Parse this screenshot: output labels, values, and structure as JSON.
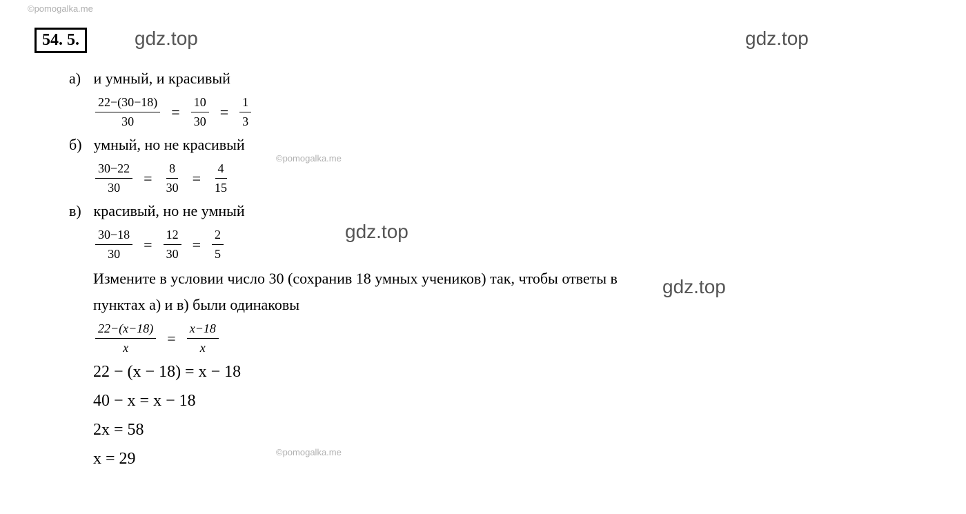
{
  "watermarks": {
    "pomogalka": "©pomogalka.me",
    "gdz": "gdz.top"
  },
  "problem": {
    "number": "54. 5.",
    "parts": {
      "a": {
        "label": "а)",
        "text": "и умный, и красивый",
        "frac1_num": "22−(30−18)",
        "frac1_den": "30",
        "frac2_num": "10",
        "frac2_den": "30",
        "frac3_num": "1",
        "frac3_den": "3"
      },
      "b": {
        "label": "б)",
        "text": "умный, но не красивый",
        "frac1_num": "30−22",
        "frac1_den": "30",
        "frac2_num": "8",
        "frac2_den": "30",
        "frac3_num": "4",
        "frac3_den": "15"
      },
      "c": {
        "label": "в)",
        "text": "красивый, но не умный",
        "frac1_num": "30−18",
        "frac1_den": "30",
        "frac2_num": "12",
        "frac2_den": "30",
        "frac3_num": "2",
        "frac3_den": "5"
      }
    },
    "instruction1": "Измените в условии число 30 (сохранив 18 умных учеников) так, чтобы ответы в",
    "instruction2": "пунктах а) и в) были одинаковы",
    "equation": {
      "left_num": "22−(x−18)",
      "left_den": "x",
      "right_num": "x−18",
      "right_den": "x"
    },
    "steps": {
      "s1": "22 − (x − 18) = x − 18",
      "s2": "40 − x = x − 18",
      "s3": "2x = 58",
      "s4": "x = 29"
    }
  },
  "eq": "="
}
